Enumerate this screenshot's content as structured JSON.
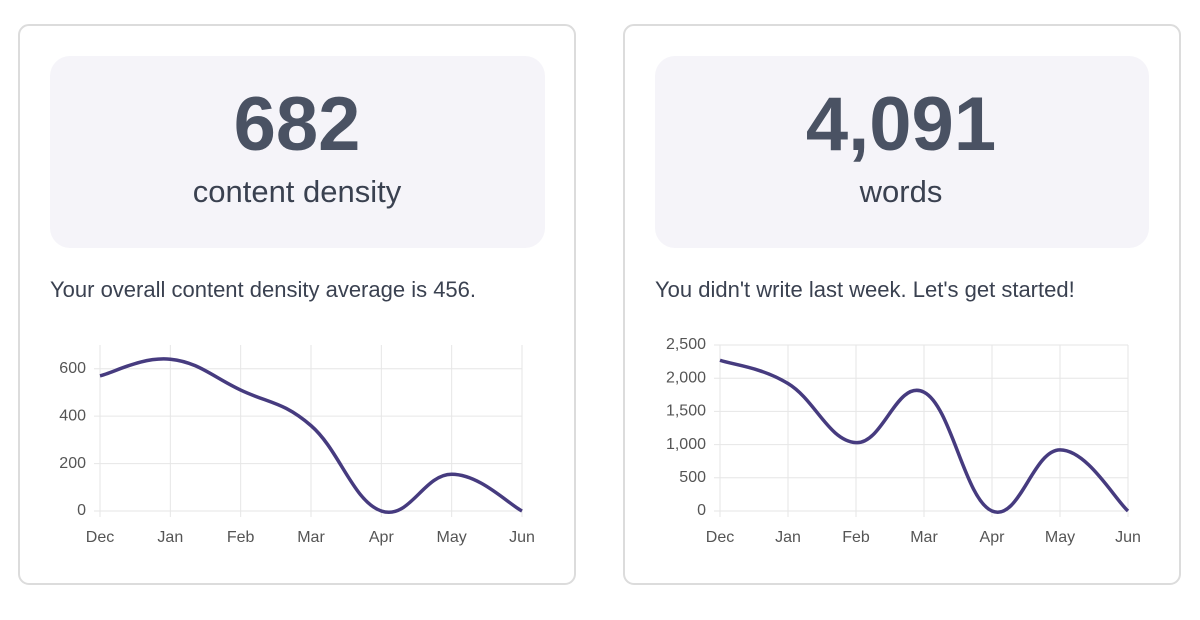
{
  "cards": [
    {
      "stat": "682",
      "label": "content density",
      "message": "Your overall content density average is 456."
    },
    {
      "stat": "4,091",
      "label": "words",
      "message": "You didn't write last week. Let's get started!"
    }
  ],
  "chart_data": [
    {
      "type": "line",
      "categories": [
        "Dec",
        "Jan",
        "Feb",
        "Mar",
        "Apr",
        "May",
        "Jun"
      ],
      "series": [
        {
          "color": "#463b7f",
          "values": [
            570,
            640,
            510,
            360,
            0,
            155,
            0
          ]
        }
      ],
      "ylim": [
        0,
        700
      ],
      "yticks": [
        0,
        200,
        400,
        600
      ],
      "grid": true
    },
    {
      "type": "line",
      "categories": [
        "Dec",
        "Jan",
        "Feb",
        "Mar",
        "Apr",
        "May",
        "Jun"
      ],
      "series": [
        {
          "color": "#463b7f",
          "values": [
            2270,
            1920,
            1030,
            1790,
            0,
            920,
            0
          ]
        }
      ],
      "ylim": [
        0,
        2500
      ],
      "yticks": [
        0,
        500,
        {
          "value": 1000,
          "label": "1,000"
        },
        {
          "value": 1500,
          "label": "1,500"
        },
        {
          "value": 2000,
          "label": "2,000"
        },
        {
          "value": 2500,
          "label": "2,500"
        }
      ],
      "grid": true
    }
  ]
}
